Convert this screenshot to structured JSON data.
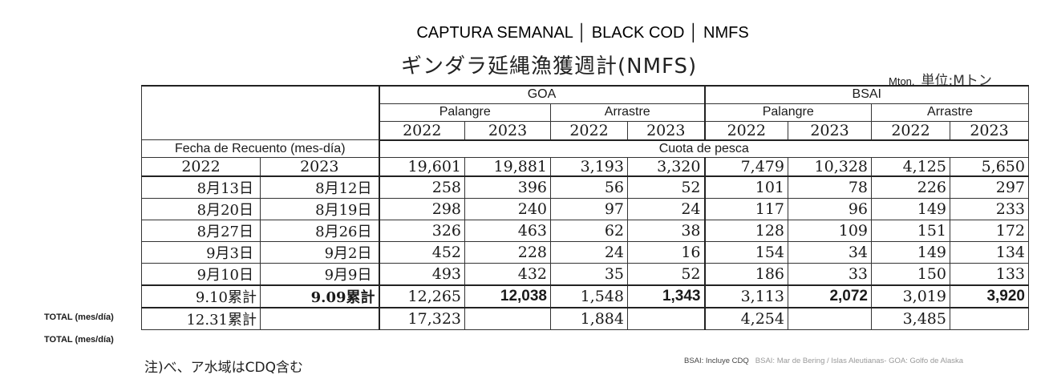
{
  "title_top": "CAPTURA SEMANAL │ BLACK COD │ NMFS",
  "title_jp": "ギンダラ延縄漁獲週計(NMFS)",
  "unit_en": "Mton.",
  "unit_jp": "単位:Mトン",
  "table": {
    "regions": [
      "GOA",
      "BSAI"
    ],
    "gears": [
      "Palangre",
      "Arrastre",
      "Palangre",
      "Arrastre"
    ],
    "years": [
      "2022",
      "2023",
      "2022",
      "2023",
      "2022",
      "2023",
      "2022",
      "2023"
    ],
    "fecha_label": "Fecha de Recuento (mes-día)",
    "cuota_label": "Cuota de pesca",
    "date_years": [
      "2022",
      "2023"
    ],
    "quota": [
      "19,601",
      "19,881",
      "3,193",
      "3,320",
      "7,479",
      "10,328",
      "4,125",
      "5,650"
    ],
    "rows": [
      {
        "d1": "8月13日",
        "d2": "8月12日",
        "v": [
          "258",
          "396",
          "56",
          "52",
          "101",
          "78",
          "226",
          "297"
        ]
      },
      {
        "d1": "8月20日",
        "d2": "8月19日",
        "v": [
          "298",
          "240",
          "97",
          "24",
          "117",
          "96",
          "149",
          "233"
        ]
      },
      {
        "d1": "8月27日",
        "d2": "8月26日",
        "v": [
          "326",
          "463",
          "62",
          "38",
          "128",
          "109",
          "151",
          "172"
        ]
      },
      {
        "d1": "9月3日",
        "d2": "9月2日",
        "v": [
          "452",
          "228",
          "24",
          "16",
          "154",
          "34",
          "149",
          "134"
        ]
      },
      {
        "d1": "9月10日",
        "d2": "9月9日",
        "v": [
          "493",
          "432",
          "35",
          "52",
          "186",
          "33",
          "150",
          "133"
        ]
      }
    ],
    "total1": {
      "label_left": "TOTAL  (mes/día)",
      "d1": "9.10累計",
      "d2": "9.09累計",
      "v": [
        "12,265",
        "12,038",
        "1,548",
        "1,343",
        "3,113",
        "2,072",
        "3,019",
        "3,920"
      ]
    },
    "total2": {
      "label_left": "TOTAL  (mes/día)",
      "d1": "12.31累計",
      "v": [
        "17,323",
        "1,884",
        "4,254",
        "3,485"
      ]
    }
  },
  "note_jp": "注)べ、ア水域はCDQ含む",
  "note_en_1": "BSAI: Incluye CDQ",
  "note_en_2": "BSAI: Mar de Bering / Islas Aleutianas- GOA: Golfo de Alaska"
}
